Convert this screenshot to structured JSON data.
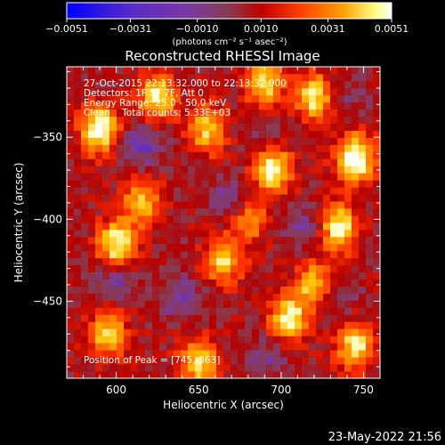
{
  "chart_data": {
    "type": "heatmap",
    "title": "Reconstructed RHESSI Image",
    "xlabel": "Heliocentric X (arcsec)",
    "ylabel": "Heliocentric Y (arcsec)",
    "xlim": [
      570,
      760
    ],
    "ylim": [
      -497,
      -307
    ],
    "x_ticks": [
      600,
      650,
      700,
      750
    ],
    "y_ticks": [
      -450,
      -400,
      -350
    ],
    "x_tick_labels": [
      "600",
      "650",
      "700",
      "750"
    ],
    "y_tick_labels": [
      "−450",
      "−400",
      "−350"
    ],
    "colorbar": {
      "min": -0.0051,
      "max": 0.0051,
      "ticks": [
        -0.0051,
        -0.0031,
        -0.001,
        0.001,
        0.0031,
        0.0051
      ],
      "tick_labels": [
        "−0.0051",
        "−0.0031",
        "−0.0010",
        "0.0010",
        "0.0031",
        "0.0051"
      ],
      "unit_label": "(photons cm⁻² s⁻¹ asec⁻²)",
      "colormap": [
        "#0000ff",
        "#5a2bc8",
        "#7a3aa0",
        "#8a3a50",
        "#b40000",
        "#ff3000",
        "#ff7a00",
        "#ffc000",
        "#ffffc0",
        "#ffffff"
      ]
    },
    "annotations": {
      "line1": "27-Oct-2015 22:13:32.000 to 22:13:32.000",
      "line2": "Detectors: 1F 5F 7F, Att 0",
      "line3": "Energy Range: 25.0 - 50.0 keV",
      "line4": "Clean    Total counts: 5.33E+03",
      "peak": "Position of Peak = [745,-363]"
    },
    "footer_date": "23-May-2022 21:56",
    "bright_blobs": [
      {
        "x": 590,
        "y": -345,
        "v": 0.0045
      },
      {
        "x": 600,
        "y": -415,
        "v": 0.004
      },
      {
        "x": 625,
        "y": -325,
        "v": 0.0035
      },
      {
        "x": 655,
        "y": -345,
        "v": 0.003
      },
      {
        "x": 690,
        "y": -318,
        "v": 0.0032
      },
      {
        "x": 695,
        "y": -370,
        "v": 0.004
      },
      {
        "x": 720,
        "y": -325,
        "v": 0.0035
      },
      {
        "x": 745,
        "y": -363,
        "v": 0.0051
      },
      {
        "x": 735,
        "y": -405,
        "v": 0.004
      },
      {
        "x": 665,
        "y": -425,
        "v": 0.003
      },
      {
        "x": 705,
        "y": -460,
        "v": 0.0038
      },
      {
        "x": 650,
        "y": -487,
        "v": 0.0033
      },
      {
        "x": 745,
        "y": -477,
        "v": 0.0035
      },
      {
        "x": 595,
        "y": -470,
        "v": 0.003
      },
      {
        "x": 615,
        "y": -390,
        "v": 0.0025
      },
      {
        "x": 680,
        "y": -400,
        "v": 0.002
      },
      {
        "x": 720,
        "y": -440,
        "v": 0.0028
      }
    ],
    "dark_blobs": [
      {
        "x": 615,
        "y": -355,
        "v": -0.0032
      },
      {
        "x": 670,
        "y": -388,
        "v": -0.003
      },
      {
        "x": 640,
        "y": -448,
        "v": -0.003
      },
      {
        "x": 600,
        "y": -438,
        "v": -0.0028
      },
      {
        "x": 715,
        "y": -405,
        "v": -0.0025
      },
      {
        "x": 690,
        "y": -485,
        "v": -0.0025
      },
      {
        "x": 735,
        "y": -447,
        "v": -0.0022
      },
      {
        "x": 690,
        "y": -345,
        "v": -0.002
      },
      {
        "x": 740,
        "y": -325,
        "v": -0.002
      }
    ]
  }
}
